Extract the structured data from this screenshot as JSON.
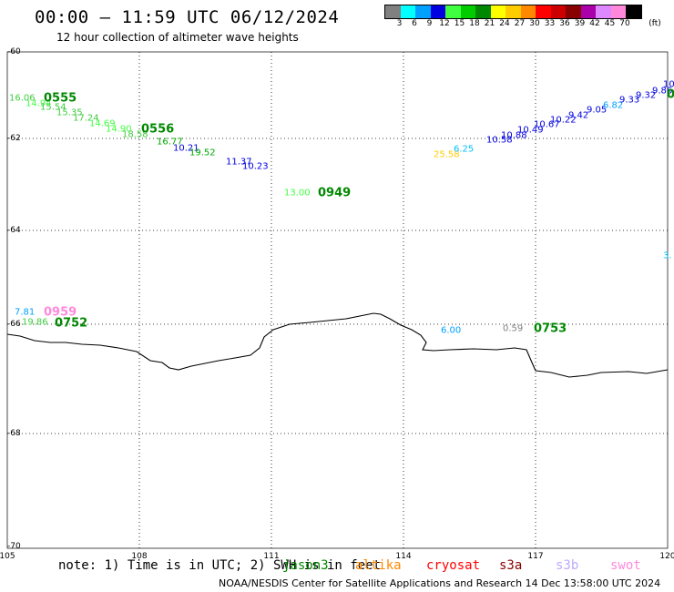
{
  "header": {
    "title": "00:00 – 11:59 UTC 06/12/2024",
    "subtitle": "12 hour collection of altimeter wave heights"
  },
  "legend": {
    "unit": "(ft)",
    "bins": [
      {
        "label": "3",
        "color": "#808080"
      },
      {
        "label": "6",
        "color": "#00ffff"
      },
      {
        "label": "9",
        "color": "#00a0ff"
      },
      {
        "label": "12",
        "color": "#0000e0"
      },
      {
        "label": "15",
        "color": "#40ff40"
      },
      {
        "label": "18",
        "color": "#00cc00"
      },
      {
        "label": "21",
        "color": "#008800"
      },
      {
        "label": "24",
        "color": "#ffff00"
      },
      {
        "label": "27",
        "color": "#ffcc00"
      },
      {
        "label": "30",
        "color": "#ff8800"
      },
      {
        "label": "33",
        "color": "#ff0000"
      },
      {
        "label": "36",
        "color": "#cc0000"
      },
      {
        "label": "39",
        "color": "#880000"
      },
      {
        "label": "42",
        "color": "#aa00aa"
      },
      {
        "label": "45",
        "color": "#dd88ff"
      },
      {
        "label": "70",
        "color": "#ff88dd"
      },
      {
        "label": "",
        "color": "#000000"
      }
    ]
  },
  "map": {
    "lat_labels": [
      "-60",
      "-62",
      "-64",
      "-66",
      "-68",
      "-70"
    ],
    "lon_labels": [
      "105",
      "108",
      "111",
      "114",
      "117",
      "120"
    ]
  },
  "wave_labels": [
    {
      "t": "16.06",
      "c": "#40cc40"
    },
    {
      "t": "14.94",
      "c": "#40ff40"
    },
    {
      "t": "15.54",
      "c": "#40cc40"
    },
    {
      "t": "15.35",
      "c": "#40cc40"
    },
    {
      "t": "17.24",
      "c": "#40cc40"
    },
    {
      "t": "14.69",
      "c": "#40ff40"
    },
    {
      "t": "14.90",
      "c": "#40ff40"
    },
    {
      "t": "18.58",
      "c": "#40cc40"
    },
    {
      "t": "16.77",
      "c": "#00aa00"
    },
    {
      "t": "10.21",
      "c": "#0000e0"
    },
    {
      "t": "19.52",
      "c": "#00aa00"
    },
    {
      "t": "11.37",
      "c": "#0000e0"
    },
    {
      "t": "10.23",
      "c": "#0000e0"
    },
    {
      "t": "13.00",
      "c": "#40ff40"
    },
    {
      "t": "25.58",
      "c": "#ffcc00"
    },
    {
      "t": "6.25",
      "c": "#00c0ff"
    },
    {
      "t": "10.58",
      "c": "#0000e0"
    },
    {
      "t": "10.88",
      "c": "#0000e0"
    },
    {
      "t": "10.49",
      "c": "#0000e0"
    },
    {
      "t": "10.67",
      "c": "#0000e0"
    },
    {
      "t": "10.22",
      "c": "#0000e0"
    },
    {
      "t": "9.42",
      "c": "#0000e0"
    },
    {
      "t": "9.05",
      "c": "#0000e0"
    },
    {
      "t": "6.82",
      "c": "#00a0ff"
    },
    {
      "t": "9.33",
      "c": "#0000e0"
    },
    {
      "t": "9.32",
      "c": "#0000e0"
    },
    {
      "t": "9.86",
      "c": "#0000e0"
    },
    {
      "t": "10",
      "c": "#0000e0"
    },
    {
      "t": "3.",
      "c": "#00c0ff"
    },
    {
      "t": "7.81",
      "c": "#00a0ff"
    },
    {
      "t": "19.86",
      "c": "#40cc40"
    },
    {
      "t": "6.00",
      "c": "#00a0ff"
    },
    {
      "t": "0.59",
      "c": "#808080"
    }
  ],
  "pass_labels": [
    {
      "t": "0555",
      "c": "#008800"
    },
    {
      "t": "0556",
      "c": "#008800"
    },
    {
      "t": "0949",
      "c": "#008800"
    },
    {
      "t": "0",
      "c": "#008800"
    },
    {
      "t": "0959",
      "c": "#ff88dd"
    },
    {
      "t": "0752",
      "c": "#008800"
    },
    {
      "t": "0753",
      "c": "#008800"
    }
  ],
  "note": "note: 1) Time is in UTC; 2) SWH is in feet",
  "satellites": [
    {
      "name": "jason3",
      "color": "#008800"
    },
    {
      "name": "altika",
      "color": "#ff8800"
    },
    {
      "name": "cryosat",
      "color": "#ff0000"
    },
    {
      "name": "s3a",
      "color": "#880000"
    },
    {
      "name": "s3b",
      "color": "#c0a8ff"
    },
    {
      "name": "swot",
      "color": "#ff88dd"
    }
  ],
  "footer": "NOAA/NESDIS Center for Satellite Applications and Research    14 Dec 13:58:00 UTC 2024"
}
